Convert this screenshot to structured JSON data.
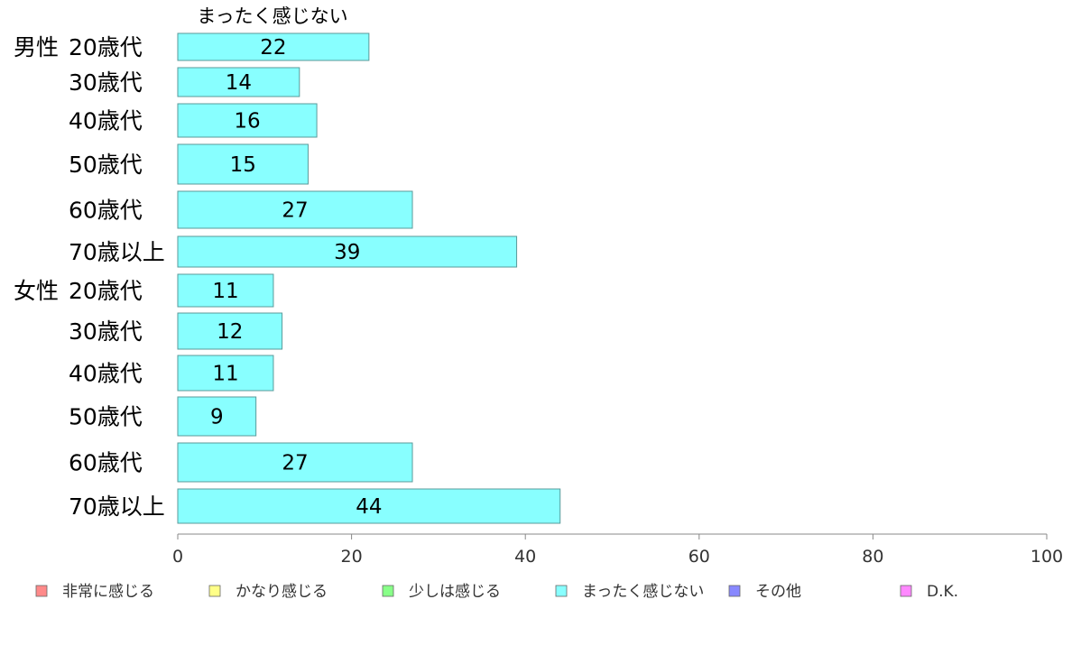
{
  "chart_data": {
    "type": "bar",
    "orientation": "horizontal",
    "series_title": "まったく感じない",
    "groups": [
      "男性",
      "女性"
    ],
    "categories": [
      "20歳代",
      "30歳代",
      "40歳代",
      "50歳代",
      "60歳代",
      "70歳以上",
      "20歳代",
      "30歳代",
      "40歳代",
      "50歳代",
      "60歳代",
      "70歳以上"
    ],
    "group_index": [
      0,
      0,
      0,
      0,
      0,
      0,
      1,
      1,
      1,
      1,
      1,
      1
    ],
    "values": [
      22,
      14,
      16,
      15,
      27,
      39,
      11,
      12,
      11,
      9,
      27,
      44
    ],
    "value_labels": [
      "22",
      "14",
      "16",
      "15",
      "27",
      "39",
      "11",
      "12",
      "11",
      "9",
      "27",
      "44"
    ],
    "xlim": [
      0,
      100
    ],
    "xticks": [
      0,
      20,
      40,
      60,
      80,
      100
    ],
    "grid": false,
    "bar_color": "#88ffff",
    "bar_edge_color": "#5a9a9a",
    "legend_position": "bottom",
    "legend": [
      {
        "label": "非常に感じる",
        "color": "#ff8a8a"
      },
      {
        "label": "かなり感じる",
        "color": "#ffff88"
      },
      {
        "label": "少しは感じる",
        "color": "#88ff88"
      },
      {
        "label": "まったく感じない",
        "color": "#88ffff"
      },
      {
        "label": "その他",
        "color": "#8888ff"
      },
      {
        "label": "D.K.",
        "color": "#ff88ff"
      }
    ]
  }
}
